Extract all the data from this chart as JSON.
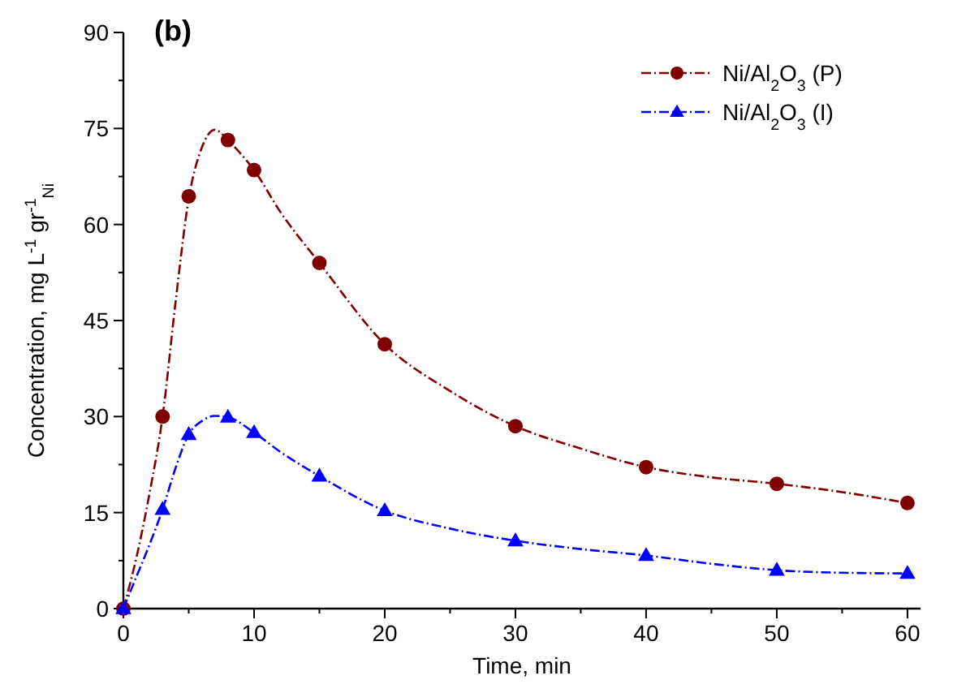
{
  "chart_data": {
    "type": "scatter",
    "title": "(b)",
    "xlabel": "Time, min",
    "ylabel": "Concentration, mg L$^{-1}$ gr$^{-1}$$_{Ni}$",
    "xlim": [
      0,
      61
    ],
    "ylim": [
      0,
      90
    ],
    "xticks": [
      0,
      {
        "value": 5,
        "label": null
      },
      10,
      {
        "value": 15,
        "label": null
      },
      20,
      {
        "value": 25,
        "label": null
      },
      30,
      {
        "value": 35,
        "label": null
      },
      40,
      {
        "value": 45,
        "label": null
      },
      50,
      {
        "value": 55,
        "label": null
      },
      60
    ],
    "yticks": [
      0,
      {
        "value": 7.5,
        "label": null
      },
      15,
      {
        "value": 22.5,
        "label": null
      },
      30,
      {
        "value": 37.5,
        "label": null
      },
      45,
      {
        "value": 52.5,
        "label": null
      },
      60,
      {
        "value": 67.5,
        "label": null
      },
      75,
      {
        "value": 82.5,
        "label": null
      },
      90
    ],
    "grid": false,
    "legend": "top right",
    "series": [
      {
        "name": "Ni/Al$_{2}$O$_{3}$ (P)",
        "color": "#800000",
        "marker": "circle",
        "line_style": "dashed",
        "x": [
          0,
          3,
          5,
          8,
          10,
          15,
          20,
          30,
          40,
          50,
          60
        ],
        "values": [
          0,
          30,
          64.4,
          73.2,
          68.5,
          54,
          41.3,
          28.5,
          22.1,
          19.5,
          16.5
        ]
      },
      {
        "name": "Ni/Al$_{2}$O$_{3}$ (I)",
        "color": "#0000ff",
        "marker": "triangle",
        "line_style": "dashed",
        "x": [
          0,
          3,
          5,
          8,
          10,
          15,
          20,
          30,
          40,
          50,
          60
        ],
        "values": [
          0,
          15.5,
          27.2,
          29.9,
          27.5,
          20.7,
          15.3,
          10.6,
          8.3,
          6,
          5.5
        ]
      },
      {
        "type": "line",
        "color": "#800000",
        "marker": "none",
        "line_style": "dashed",
        "x": [
          0,
          1,
          2,
          3,
          4,
          5,
          6,
          7,
          8,
          9,
          10,
          12,
          15,
          20,
          25,
          30,
          35,
          40,
          45,
          50,
          55,
          60
        ],
        "values": [
          0,
          8,
          18,
          30,
          48,
          64,
          72,
          74.8,
          73.2,
          71,
          68.5,
          62,
          54,
          41.3,
          34,
          28.5,
          25,
          22.1,
          20.5,
          19.5,
          18.2,
          16.5
        ]
      },
      {
        "type": "line",
        "color": "#0000ff",
        "marker": "none",
        "line_style": "dashed",
        "x": [
          0,
          1,
          2,
          3,
          4,
          5,
          6,
          7,
          8,
          10,
          12,
          15,
          20,
          25,
          30,
          35,
          40,
          45,
          50,
          55,
          60
        ],
        "values": [
          0,
          5,
          10,
          15.5,
          22,
          27.2,
          29.3,
          30.1,
          29.9,
          27.5,
          24.5,
          20.7,
          15.3,
          12.5,
          10.6,
          9.3,
          8.3,
          7,
          6,
          5.6,
          5.5
        ]
      }
    ]
  }
}
